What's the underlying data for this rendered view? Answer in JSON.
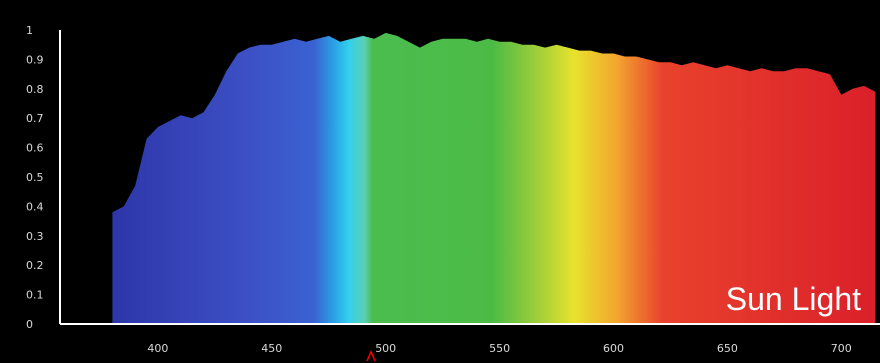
{
  "chart_data": {
    "type": "area",
    "label": "Sun Light",
    "x_ticks": [
      400,
      450,
      500,
      550,
      600,
      650,
      700
    ],
    "y_ticks": [
      "0",
      "0.1",
      "0.2",
      "0.3",
      "0.4",
      "0.5",
      "0.6",
      "0.7",
      "0.8",
      "0.9",
      "1"
    ],
    "xlim": [
      357,
      717
    ],
    "ylim": [
      0,
      1
    ],
    "grid": false,
    "series": [
      {
        "x": [
          380,
          385,
          390,
          395,
          400,
          405,
          410,
          415,
          420,
          425,
          430,
          435,
          440,
          445,
          450,
          455,
          460,
          465,
          470,
          475,
          480,
          485,
          490,
          495,
          500,
          505,
          510,
          515,
          520,
          525,
          530,
          535,
          540,
          545,
          550,
          555,
          560,
          565,
          570,
          575,
          580,
          585,
          590,
          595,
          600,
          605,
          610,
          615,
          620,
          625,
          630,
          635,
          640,
          645,
          650,
          655,
          660,
          665,
          670,
          675,
          680,
          685,
          690,
          695,
          700,
          705,
          710,
          715
        ],
        "values": [
          0.38,
          0.4,
          0.47,
          0.63,
          0.67,
          0.69,
          0.71,
          0.7,
          0.72,
          0.78,
          0.86,
          0.92,
          0.94,
          0.95,
          0.95,
          0.96,
          0.97,
          0.96,
          0.97,
          0.98,
          0.96,
          0.97,
          0.98,
          0.97,
          0.99,
          0.98,
          0.96,
          0.94,
          0.96,
          0.97,
          0.97,
          0.97,
          0.96,
          0.97,
          0.96,
          0.96,
          0.95,
          0.95,
          0.94,
          0.95,
          0.94,
          0.93,
          0.93,
          0.92,
          0.92,
          0.91,
          0.91,
          0.9,
          0.89,
          0.89,
          0.88,
          0.89,
          0.88,
          0.87,
          0.88,
          0.87,
          0.86,
          0.87,
          0.86,
          0.86,
          0.87,
          0.87,
          0.86,
          0.85,
          0.78,
          0.8,
          0.81,
          0.79
        ]
      }
    ]
  },
  "colors": {
    "background": "#000000",
    "axis": "#ffffff",
    "tick_text": "#d8d8d8",
    "label_text": "#ffffff",
    "marker": "#ff0000"
  }
}
